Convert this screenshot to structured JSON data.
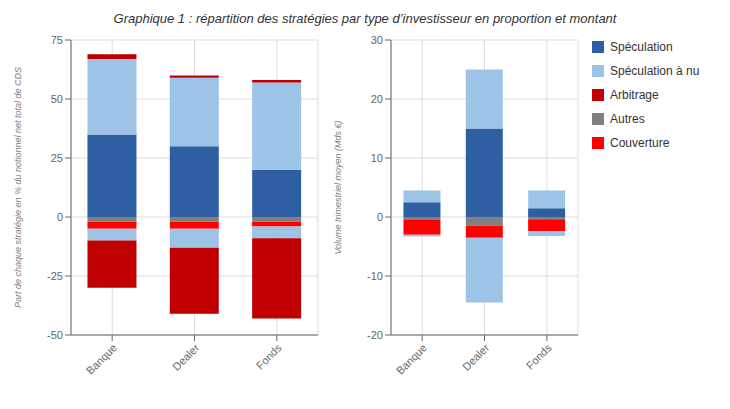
{
  "chart_data": [
    {
      "type": "bar",
      "stacked": true,
      "grid": true,
      "title": "Graphique 1 : répartition des stratégies par type d’investisseur en proportion et montant",
      "ylabel": "Part de chaque stratégie en % du notionnel net total de CDS",
      "categories": [
        "Banque",
        "Dealer",
        "Fonds"
      ],
      "ylim": [
        -50,
        75
      ],
      "yticks": [
        -50,
        -25,
        0,
        25,
        50,
        75
      ],
      "series": [
        {
          "name": "Spéculation",
          "color": "#2e5fa3",
          "values": [
            35,
            30,
            20
          ]
        },
        {
          "name": "Spéculation à nu",
          "color": "#9dc3e6",
          "values": [
            32,
            29,
            37
          ]
        },
        {
          "name": "Arbitrage",
          "color": "#c00000",
          "values": [
            2,
            1,
            1
          ]
        },
        {
          "name": "Autres",
          "color": "#808080",
          "values": [
            -2,
            -2,
            -2
          ]
        },
        {
          "name": "Couverture",
          "color": "#ff0000",
          "values": [
            -3,
            -3,
            -2
          ]
        },
        {
          "name": "Spéculation à nu",
          "color": "#9dc3e6",
          "values": [
            -5,
            -8,
            -5
          ]
        },
        {
          "name": "Arbitrage",
          "color": "#c00000",
          "values": [
            -20,
            -28,
            -34
          ]
        }
      ]
    },
    {
      "type": "bar",
      "stacked": true,
      "grid": true,
      "legend": "right",
      "ylabel": "Volume trimestriel moyen (Mds €)",
      "categories": [
        "Banque",
        "Dealer",
        "Fonds"
      ],
      "ylim": [
        -20,
        30
      ],
      "yticks": [
        -20,
        -10,
        0,
        10,
        20,
        30
      ],
      "series": [
        {
          "name": "Spéculation",
          "color": "#2e5fa3",
          "values": [
            2.5,
            15.0,
            1.5
          ]
        },
        {
          "name": "Spéculation à nu",
          "color": "#9dc3e6",
          "values": [
            2.0,
            10.0,
            3.0
          ]
        },
        {
          "name": "Autres",
          "color": "#808080",
          "values": [
            -0.5,
            -1.5,
            -0.4
          ]
        },
        {
          "name": "Couverture",
          "color": "#ff0000",
          "values": [
            -2.5,
            -2.0,
            -2.0
          ]
        },
        {
          "name": "Spéculation à nu",
          "color": "#9dc3e6",
          "values": [
            -0.3,
            -11.0,
            -0.8
          ]
        }
      ]
    }
  ]
}
